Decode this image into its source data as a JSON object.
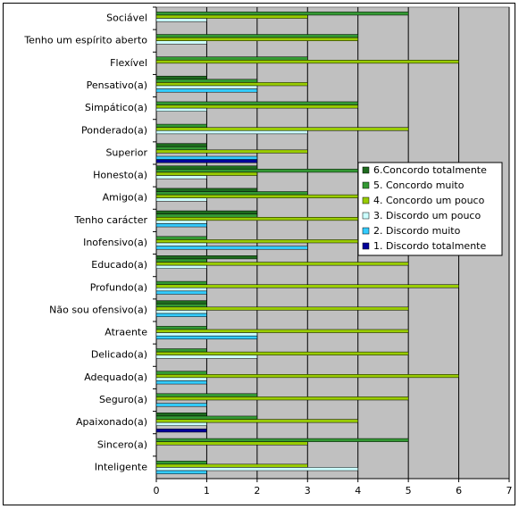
{
  "chart_data": {
    "type": "bar",
    "orientation": "horizontal",
    "categories": [
      "Sociável",
      "Tenho um espírito aberto",
      "Flexível",
      "Pensativo(a)",
      "Simpático(a)",
      "Ponderado(a)",
      "Superior",
      "Honesto(a)",
      "Amigo(a)",
      "Tenho carácter",
      "Inofensivo(a)",
      "Educado(a)",
      "Profundo(a)",
      "Não sou ofensivo(a)",
      "Atraente",
      "Delicado(a)",
      "Adequado(a)",
      "Seguro(a)",
      "Apaixonado(a)",
      "Sincero(a)",
      "Inteligente"
    ],
    "series": [
      {
        "name": "6.Concordo totalmente",
        "color": "#1e6b1e",
        "values": [
          0,
          0,
          0,
          1,
          0,
          0,
          1,
          2,
          2,
          2,
          0,
          2,
          0,
          1,
          0,
          0,
          0,
          0,
          1,
          0,
          0
        ]
      },
      {
        "name": "5. Concordo muito",
        "color": "#339933",
        "values": [
          5,
          4,
          3,
          2,
          4,
          1,
          1,
          4,
          3,
          2,
          1,
          1,
          1,
          1,
          1,
          1,
          1,
          2,
          2,
          5,
          1
        ]
      },
      {
        "name": "4. Concordo um pouco",
        "color": "#99cc00",
        "values": [
          3,
          4,
          6,
          3,
          4,
          5,
          3,
          2,
          4,
          4,
          4,
          5,
          6,
          5,
          5,
          5,
          6,
          5,
          4,
          3,
          3
        ]
      },
      {
        "name": "3. Discordo um pouco",
        "color": "#ccffff",
        "values": [
          1,
          1,
          0,
          2,
          1,
          3,
          0,
          1,
          1,
          1,
          1,
          1,
          1,
          1,
          2,
          2,
          1,
          0,
          1,
          0,
          4
        ]
      },
      {
        "name": "2. Discordo muito",
        "color": "#33ccff",
        "values": [
          0,
          0,
          0,
          2,
          0,
          0,
          2,
          0,
          0,
          1,
          3,
          0,
          1,
          1,
          2,
          0,
          1,
          1,
          0,
          0,
          1
        ]
      },
      {
        "name": "1. Discordo totalmente",
        "color": "#000099",
        "values": [
          0,
          0,
          0,
          0,
          0,
          0,
          2,
          0,
          0,
          0,
          0,
          0,
          0,
          0,
          0,
          0,
          0,
          0,
          1,
          0,
          0
        ]
      }
    ],
    "xlim": [
      0,
      7
    ],
    "xticks": [
      0,
      1,
      2,
      3,
      4,
      5,
      6,
      7
    ],
    "grid": true,
    "legend": "right",
    "plot_background": "#c0c0c0"
  }
}
